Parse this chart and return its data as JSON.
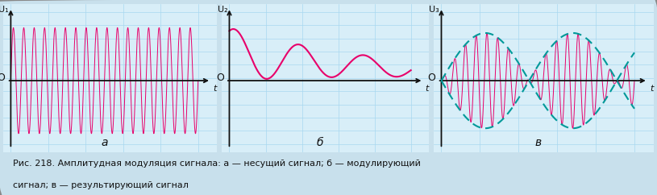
{
  "bg_color": "#c8e0ec",
  "panel_bg": "#d8eef8",
  "border_color": "#aaaaaa",
  "carrier_color": "#e8006a",
  "modulating_color": "#e8006a",
  "envelope_color": "#009999",
  "axis_color": "#111111",
  "label_color": "#111111",
  "panel_labels": [
    "а",
    "б",
    "в"
  ],
  "y_labels": [
    "U₁",
    "U₂",
    "U₃"
  ],
  "x_label": "t",
  "origin_label": "O",
  "caption_line1": "Рис. 218. Амплитудная модуляция сигнала: а — несущий сигнал; б — модулирующий",
  "caption_line2": "сигнал; в — результирующий сигнал"
}
